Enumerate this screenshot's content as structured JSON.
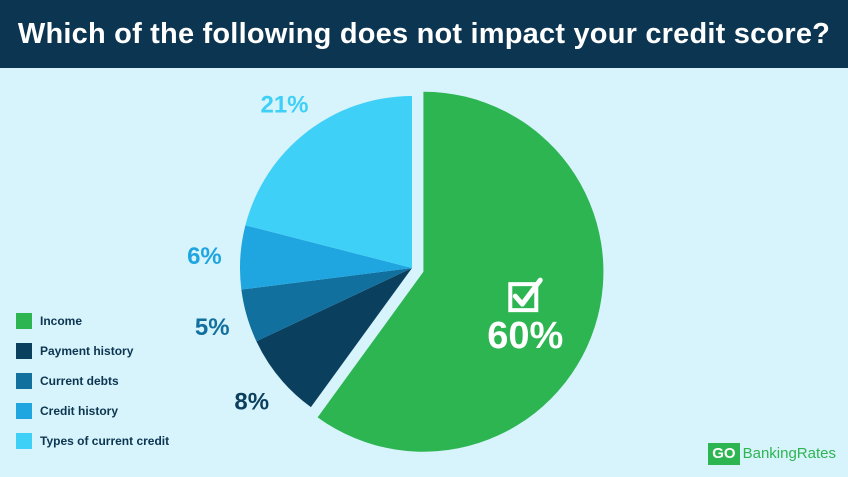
{
  "header": {
    "title": "Which of the following does not impact your credit score?"
  },
  "chart_data": {
    "type": "pie",
    "title": "Which of the following does not impact your credit score?",
    "categories": [
      "Income",
      "Payment history",
      "Current debts",
      "Credit history",
      "Types of current credit"
    ],
    "values": [
      60,
      8,
      5,
      6,
      21
    ],
    "labels": [
      "60%",
      "8%",
      "5%",
      "6%",
      "21%"
    ],
    "colors": [
      "#2db552",
      "#0b3f5e",
      "#12709f",
      "#1fa6e0",
      "#3fd0f8"
    ],
    "label_colors": [
      "#ffffff",
      "#0b3f5e",
      "#12709f",
      "#1fa6e0",
      "#3fd0f8"
    ],
    "exploded_slice": "Income",
    "highlight_icon": "checkbox-check-icon",
    "legend_position": "bottom-left"
  },
  "legend": {
    "items": [
      {
        "label": "Income",
        "color": "#2db552"
      },
      {
        "label": "Payment history",
        "color": "#0b3f5e"
      },
      {
        "label": "Current debts",
        "color": "#12709f"
      },
      {
        "label": "Credit history",
        "color": "#1fa6e0"
      },
      {
        "label": "Types of current credit",
        "color": "#3fd0f8"
      }
    ]
  },
  "brand": {
    "go": "GO",
    "rest": "BankingRates"
  }
}
